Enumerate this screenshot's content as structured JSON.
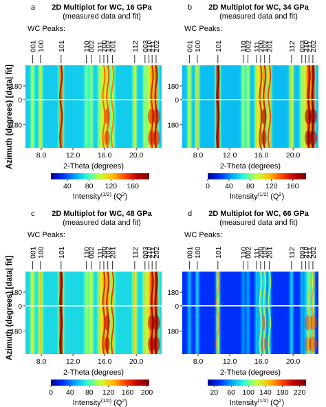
{
  "figure": {
    "shared_ylabel": "Azimuth (degrees) [data| fit]",
    "colormap": [
      "#00008f",
      "#0030ff",
      "#00a8ff",
      "#30ffcf",
      "#c8ff38",
      "#ffc000",
      "#ff4800",
      "#bf0000",
      "#7a0000"
    ]
  },
  "chart_data": [
    {
      "type": "heatmap",
      "panel_letter": "a",
      "title": "2D Multiplot for WC, 16 GPa",
      "subtitle": "(measured data and fit)",
      "peaks_heading": "WC Peaks:",
      "peaks": [
        {
          "label": "001",
          "x": 6.9
        },
        {
          "label": "100",
          "x": 7.9
        },
        {
          "label": "101",
          "x": 10.5
        },
        {
          "label": "110",
          "x": 13.7
        },
        {
          "label": "002",
          "x": 14.3
        },
        {
          "label": "111",
          "x": 15.4
        },
        {
          "label": "200",
          "x": 15.9
        },
        {
          "label": "102",
          "x": 16.4
        },
        {
          "label": "201",
          "x": 17.0
        },
        {
          "label": "112",
          "x": 19.8
        },
        {
          "label": "003",
          "x": 21.1
        },
        {
          "label": "210",
          "x": 21.6
        },
        {
          "label": "211",
          "x": 22.0
        },
        {
          "label": "202",
          "x": 22.5
        }
      ],
      "xlabel": "2-Theta (degrees)",
      "xticks": [
        "8.0",
        "12.0",
        "16.0",
        "20.0"
      ],
      "xtick_values": [
        8,
        12,
        16,
        20
      ],
      "xlim": [
        6.0,
        23.2
      ],
      "yticks": [
        "180",
        "0",
        "180"
      ],
      "colorbar": {
        "label": "Intensity",
        "label_sup": "(1/2)",
        "label_unit": " (Q",
        "unit_sup": "2",
        "label_end": ")",
        "ticks": [
          "40",
          "80",
          "120",
          "160"
        ],
        "tick_values": [
          40,
          80,
          120,
          160
        ],
        "range": [
          10,
          190
        ]
      }
    },
    {
      "type": "heatmap",
      "panel_letter": "b",
      "title": "2D Multiplot for WC, 34 GPa",
      "subtitle": "(measured data and fit)",
      "peaks_heading": "WC Peaks:",
      "peaks": [
        {
          "label": "001",
          "x": 6.9
        },
        {
          "label": "100",
          "x": 7.9
        },
        {
          "label": "101",
          "x": 10.5
        },
        {
          "label": "110",
          "x": 13.7
        },
        {
          "label": "002",
          "x": 14.3
        },
        {
          "label": "111",
          "x": 15.4
        },
        {
          "label": "200",
          "x": 15.9
        },
        {
          "label": "102",
          "x": 16.4
        },
        {
          "label": "201",
          "x": 17.0
        },
        {
          "label": "112",
          "x": 19.8
        },
        {
          "label": "003",
          "x": 21.1
        },
        {
          "label": "210",
          "x": 21.6
        },
        {
          "label": "211",
          "x": 22.0
        },
        {
          "label": "202",
          "x": 22.5
        }
      ],
      "xlabel": "2-Theta (degrees)",
      "xticks": [
        "8.0",
        "12.0",
        "16.0",
        "20.0"
      ],
      "xtick_values": [
        8,
        12,
        16,
        20
      ],
      "xlim": [
        6.0,
        23.2
      ],
      "yticks": [
        "180",
        "0",
        "180"
      ],
      "colorbar": {
        "label": "Intensity",
        "label_sup": "(1/2)",
        "label_unit": " (Q",
        "unit_sup": "2",
        "label_end": ")",
        "ticks": [
          "0",
          "40",
          "80",
          "120",
          "160"
        ],
        "tick_values": [
          0,
          40,
          80,
          120,
          160
        ],
        "range": [
          0,
          185
        ]
      }
    },
    {
      "type": "heatmap",
      "panel_letter": "c",
      "title": "2D Multiplot for WC, 48 GPa",
      "subtitle": "(measured data and fit)",
      "peaks_heading": "WC Peaks:",
      "peaks": [
        {
          "label": "001",
          "x": 6.9
        },
        {
          "label": "100",
          "x": 7.9
        },
        {
          "label": "101",
          "x": 10.5
        },
        {
          "label": "110",
          "x": 13.7
        },
        {
          "label": "002",
          "x": 14.3
        },
        {
          "label": "111",
          "x": 15.4
        },
        {
          "label": "200",
          "x": 15.9
        },
        {
          "label": "102",
          "x": 16.4
        },
        {
          "label": "201",
          "x": 17.0
        },
        {
          "label": "112",
          "x": 19.8
        },
        {
          "label": "003",
          "x": 21.1
        },
        {
          "label": "210",
          "x": 21.6
        },
        {
          "label": "211",
          "x": 22.0
        },
        {
          "label": "202",
          "x": 22.5
        }
      ],
      "xlabel": "2-Theta (degrees)",
      "xticks": [
        "8.0",
        "12.0",
        "16.0",
        "20.0"
      ],
      "xtick_values": [
        8,
        12,
        16,
        20
      ],
      "xlim": [
        6.0,
        23.2
      ],
      "yticks": [
        "180",
        "0",
        "180"
      ],
      "colorbar": {
        "label": "Intensity",
        "label_sup": "(1/2)",
        "label_unit": " (Q",
        "unit_sup": "2",
        "label_end": ")",
        "ticks": [
          "0",
          "40",
          "80",
          "120",
          "160",
          "200"
        ],
        "tick_values": [
          0,
          40,
          80,
          120,
          160,
          200
        ],
        "range": [
          0,
          205
        ]
      }
    },
    {
      "type": "heatmap",
      "panel_letter": "d",
      "title": "2D Multiplot for WC, 66 GPa",
      "subtitle": "(measured data and fit)",
      "peaks_heading": "WC Peaks:",
      "peaks": [
        {
          "label": "001",
          "x": 6.9
        },
        {
          "label": "100",
          "x": 7.9
        },
        {
          "label": "101",
          "x": 10.5
        },
        {
          "label": "110",
          "x": 13.7
        },
        {
          "label": "002",
          "x": 14.3
        },
        {
          "label": "111",
          "x": 15.4
        },
        {
          "label": "200",
          "x": 15.9
        },
        {
          "label": "102",
          "x": 16.4
        },
        {
          "label": "201",
          "x": 17.0
        },
        {
          "label": "112",
          "x": 19.8
        },
        {
          "label": "003",
          "x": 21.1
        },
        {
          "label": "210",
          "x": 21.6
        },
        {
          "label": "211",
          "x": 22.0
        },
        {
          "label": "202",
          "x": 22.5
        }
      ],
      "xlabel": "2-Theta (degrees)",
      "xticks": [
        "8.0",
        "12.0",
        "16.0",
        "20.0"
      ],
      "xtick_values": [
        8,
        12,
        16,
        20
      ],
      "xlim": [
        6.0,
        23.2
      ],
      "yticks": [
        "180",
        "0",
        "180"
      ],
      "colorbar": {
        "label": "Intensity",
        "label_sup": "(1/2)",
        "label_unit": " (Q",
        "unit_sup": "2",
        "label_end": ")",
        "ticks": [
          "20",
          "60",
          "100",
          "140",
          "180",
          "220"
        ],
        "tick_values": [
          20,
          60,
          100,
          140,
          180,
          220
        ],
        "range": [
          5,
          235
        ]
      }
    }
  ]
}
